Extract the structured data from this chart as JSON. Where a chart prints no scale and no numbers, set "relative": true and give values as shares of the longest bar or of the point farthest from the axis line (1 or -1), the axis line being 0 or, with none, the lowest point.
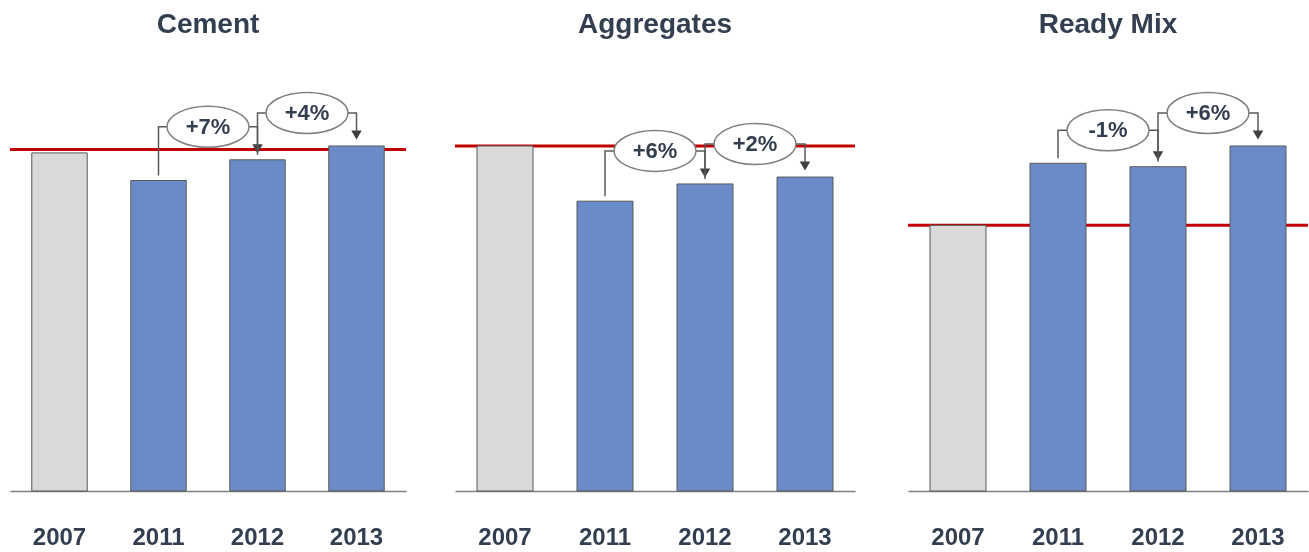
{
  "chart_data": [
    {
      "type": "bar",
      "title": "Cement",
      "categories": [
        "2007",
        "2011",
        "2012",
        "2013"
      ],
      "values": [
        0.98,
        0.9,
        0.96,
        1
      ],
      "colors": [
        "#d9d9d9",
        "#6a8bc7",
        "#6a8bc7",
        "#6a8bc7"
      ],
      "relative": true,
      "ref_lines": [
        {
          "axis": "y",
          "value": 0.99,
          "color": "#c00000"
        }
      ],
      "annotations": [
        {
          "text": "+7%",
          "x": "2012",
          "y": 0.96
        },
        {
          "text": "+4%",
          "x": "2013",
          "y": 1
        }
      ]
    },
    {
      "type": "bar",
      "title": "Aggregates",
      "categories": [
        "2007",
        "2011",
        "2012",
        "2013"
      ],
      "values": [
        1,
        0.84,
        0.89,
        0.91
      ],
      "colors": [
        "#d9d9d9",
        "#6a8bc7",
        "#6a8bc7",
        "#6a8bc7"
      ],
      "relative": true,
      "ref_lines": [
        {
          "axis": "y",
          "value": 1,
          "color": "#c00000"
        }
      ],
      "annotations": [
        {
          "text": "+6%",
          "x": "2012",
          "y": 0.89
        },
        {
          "text": "+2%",
          "x": "2013",
          "y": 0.91
        }
      ]
    },
    {
      "type": "bar",
      "title": "Ready Mix",
      "categories": [
        "2007",
        "2011",
        "2012",
        "2013"
      ],
      "values": [
        0.77,
        0.95,
        0.94,
        1
      ],
      "colors": [
        "#d9d9d9",
        "#6a8bc7",
        "#6a8bc7",
        "#6a8bc7"
      ],
      "relative": true,
      "ref_lines": [
        {
          "axis": "y",
          "value": 0.77,
          "color": "#c00000"
        }
      ],
      "annotations": [
        {
          "text": "-1%",
          "x": "2012",
          "y": 0.94
        },
        {
          "text": "+6%",
          "x": "2013",
          "y": 1
        }
      ]
    }
  ]
}
